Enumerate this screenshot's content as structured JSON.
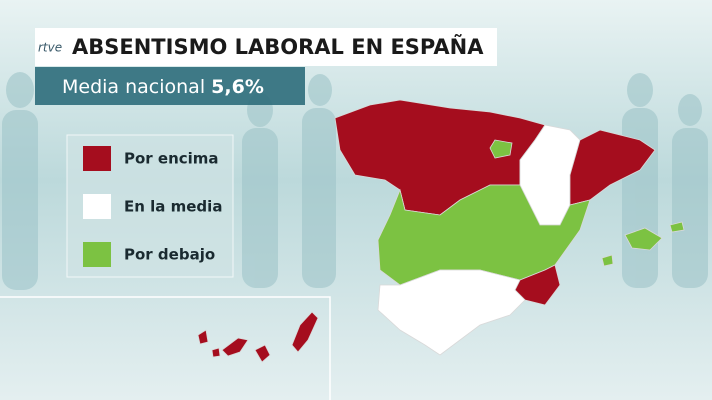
{
  "header": {
    "logo": "rtve",
    "title": "ABSENTISMO LABORAL EN ESPAÑA",
    "subtitle": "Media nacional",
    "value": "5,6%"
  },
  "legend": [
    {
      "label": "Por encima",
      "color": "#a50d1e"
    },
    {
      "label": "En la media",
      "color": "#ffffff"
    },
    {
      "label": "Por debajo",
      "color": "#7cc242"
    }
  ]
}
